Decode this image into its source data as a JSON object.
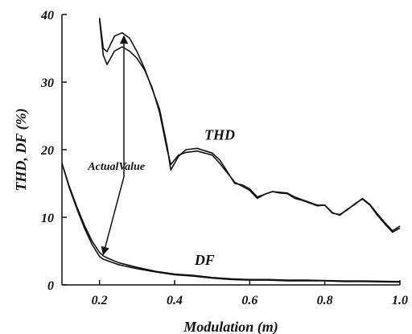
{
  "chart_data": {
    "type": "line",
    "xlabel": "Modulation (m)",
    "ylabel": "THD, DF (%)",
    "xlim": [
      0.1,
      1.0
    ],
    "ylim": [
      0,
      40
    ],
    "xticks": [
      0.2,
      0.4,
      0.6,
      0.8,
      1.0
    ],
    "xtick_labels": [
      "0.2",
      "0.4",
      "0.6",
      "0.8",
      "1.0"
    ],
    "yticks": [
      0,
      10,
      20,
      30,
      40
    ],
    "ytick_labels": [
      "0",
      "10",
      "20",
      "30",
      "40"
    ],
    "grid": false,
    "legend": "none",
    "series": [
      {
        "color": "#111111",
        "x": [
          0.2,
          0.21,
          0.22,
          0.24,
          0.26,
          0.28,
          0.3,
          0.32,
          0.34,
          0.36,
          0.38,
          0.39,
          0.41,
          0.43,
          0.46,
          0.5,
          0.52,
          0.54,
          0.56,
          0.58,
          0.6,
          0.62,
          0.64,
          0.66,
          0.68,
          0.7,
          0.72,
          0.74,
          0.76,
          0.78,
          0.8,
          0.82,
          0.84,
          0.86,
          0.88,
          0.9,
          0.92,
          0.94,
          0.96,
          0.98,
          1.0
        ],
        "values": [
          39.5,
          35,
          34.5,
          36.8,
          37.3,
          36.5,
          34.5,
          32,
          29,
          26,
          20.5,
          17,
          19,
          20,
          20.2,
          19.5,
          18.5,
          16.8,
          15,
          14.8,
          14.2,
          13,
          13.4,
          13.8,
          13.7,
          13.6,
          13,
          12.6,
          12.2,
          11.8,
          11.8,
          10.7,
          10.3,
          11.2,
          11.9,
          12.8,
          11.9,
          10.5,
          9.2,
          8,
          8.7
        ]
      },
      {
        "color": "#111111",
        "x": [
          0.2,
          0.21,
          0.22,
          0.24,
          0.26,
          0.28,
          0.3,
          0.32,
          0.34,
          0.36,
          0.38,
          0.39,
          0.41,
          0.43,
          0.46,
          0.5,
          0.52,
          0.54,
          0.56,
          0.58,
          0.6,
          0.62,
          0.64,
          0.66,
          0.68,
          0.7,
          0.72,
          0.74,
          0.76,
          0.78,
          0.8,
          0.82,
          0.84,
          0.86,
          0.88,
          0.9,
          0.92,
          0.94,
          0.96,
          0.98,
          1.0
        ],
        "values": [
          39.2,
          34,
          32.6,
          34.6,
          35.2,
          34.6,
          33.5,
          31.8,
          29.2,
          25.5,
          20,
          17.8,
          19.2,
          19.6,
          19.8,
          19.2,
          18,
          16.6,
          15.2,
          14.6,
          14,
          12.8,
          13.4,
          13.8,
          13.6,
          13.5,
          12.8,
          12.5,
          12.1,
          11.7,
          11.8,
          10.6,
          10.4,
          11.1,
          12,
          12.7,
          11.8,
          10.3,
          9,
          7.8,
          8.4
        ]
      },
      {
        "color": "#111111",
        "x": [
          0.1,
          0.12,
          0.14,
          0.16,
          0.18,
          0.2,
          0.21,
          0.22,
          0.25,
          0.3,
          0.35,
          0.4,
          0.45,
          0.5,
          0.55,
          0.6,
          0.65,
          0.7,
          0.75,
          0.8,
          0.85,
          0.9,
          0.95,
          1.0
        ],
        "values": [
          18,
          14.5,
          11.5,
          8.8,
          6.5,
          4.8,
          4.3,
          4,
          3.3,
          2.6,
          2,
          1.6,
          1.4,
          1.1,
          0.9,
          0.8,
          0.8,
          0.7,
          0.7,
          0.65,
          0.6,
          0.6,
          0.55,
          0.5
        ]
      },
      {
        "color": "#111111",
        "x": [
          0.1,
          0.12,
          0.14,
          0.16,
          0.18,
          0.2,
          0.21,
          0.22,
          0.25,
          0.3,
          0.35,
          0.4,
          0.45,
          0.5,
          0.55,
          0.6,
          0.65,
          0.7,
          0.75,
          0.8,
          0.85,
          0.9,
          0.95,
          1.0
        ],
        "values": [
          18,
          14.3,
          11.2,
          8.4,
          6,
          4.2,
          3.8,
          3.6,
          3,
          2.4,
          1.9,
          1.5,
          1.3,
          1,
          0.8,
          0.7,
          0.7,
          0.6,
          0.6,
          0.6,
          0.5,
          0.5,
          0.45,
          0.4
        ]
      }
    ],
    "annotations": [
      {
        "text": "THD",
        "x": 0.52,
        "y": 21.5,
        "size": 18
      },
      {
        "text": "DF",
        "x": 0.48,
        "y": 3.0,
        "size": 18
      },
      {
        "text": "ActualValue",
        "x": 0.245,
        "y": 17.0,
        "size": 14
      }
    ],
    "arrows": [
      {
        "from": [
          0.265,
          16.0
        ],
        "to": [
          0.265,
          36.8
        ]
      },
      {
        "from": [
          0.265,
          16.0
        ],
        "to": [
          0.21,
          4.5
        ]
      }
    ]
  }
}
